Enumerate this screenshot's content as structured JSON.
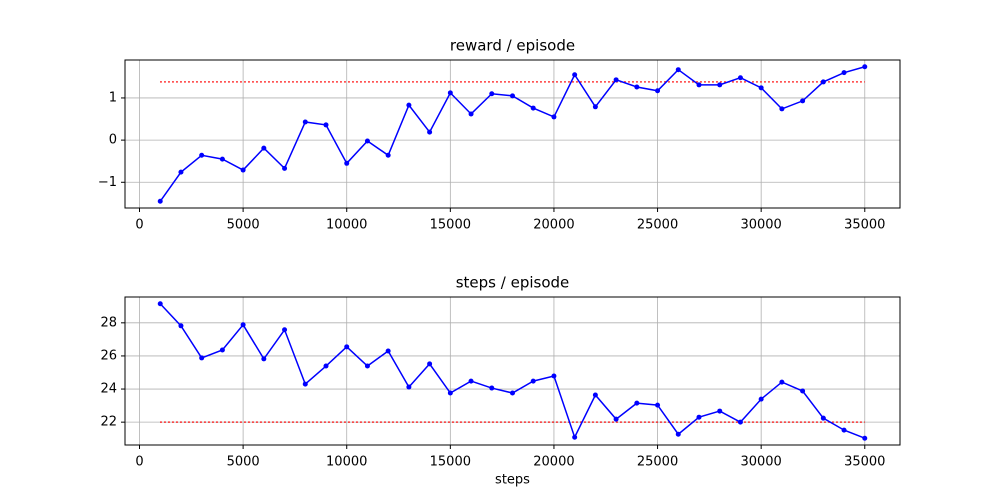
{
  "chart_data": [
    {
      "type": "line",
      "title": "reward / episode",
      "x": [
        1000,
        2000,
        3000,
        4000,
        5000,
        6000,
        7000,
        8000,
        9000,
        10000,
        11000,
        12000,
        13000,
        14000,
        15000,
        16000,
        17000,
        18000,
        19000,
        20000,
        21000,
        22000,
        23000,
        24000,
        25000,
        26000,
        27000,
        28000,
        29000,
        30000,
        31000,
        32000,
        33000,
        34000,
        35000
      ],
      "series": [
        {
          "color": "#0000ff",
          "values": [
            -1.45,
            -0.76,
            -0.36,
            -0.45,
            -0.71,
            -0.19,
            -0.67,
            0.43,
            0.36,
            -0.55,
            -0.02,
            -0.36,
            0.83,
            0.19,
            1.12,
            0.62,
            1.1,
            1.05,
            0.76,
            0.55,
            1.55,
            0.79,
            1.43,
            1.26,
            1.17,
            1.67,
            1.31,
            1.31,
            1.48,
            1.24,
            0.74,
            0.93,
            1.38,
            1.6,
            1.74
          ]
        }
      ],
      "threshold": {
        "value": 1.38,
        "xrange": [
          1000,
          35000
        ],
        "color": "#ff0000",
        "style": "dotted"
      },
      "xlim": [
        -700,
        36700
      ],
      "xticks": [
        0,
        5000,
        10000,
        15000,
        20000,
        25000,
        30000,
        35000
      ],
      "ylim": [
        -1.61,
        1.9
      ],
      "yticks": [
        {
          "value": -1,
          "label": "−1"
        },
        0,
        1
      ],
      "grid": true
    },
    {
      "type": "line",
      "title": "steps / episode",
      "x_label": "steps",
      "x": [
        1000,
        2000,
        3000,
        4000,
        5000,
        6000,
        7000,
        8000,
        9000,
        10000,
        11000,
        12000,
        13000,
        14000,
        15000,
        16000,
        17000,
        18000,
        19000,
        20000,
        21000,
        22000,
        23000,
        24000,
        25000,
        26000,
        27000,
        28000,
        29000,
        30000,
        31000,
        32000,
        33000,
        34000,
        35000
      ],
      "series": [
        {
          "color": "#0000ff",
          "values": [
            29.15,
            27.82,
            25.88,
            26.36,
            27.88,
            25.82,
            27.58,
            24.3,
            25.39,
            26.55,
            25.39,
            26.3,
            24.12,
            25.52,
            23.76,
            24.48,
            24.06,
            23.76,
            24.48,
            24.79,
            21.09,
            23.64,
            22.18,
            23.15,
            23.03,
            21.27,
            22.3,
            22.67,
            22.0,
            23.39,
            24.42,
            23.88,
            22.24,
            21.52,
            21.03
          ]
        }
      ],
      "threshold": {
        "value": 22,
        "xrange": [
          1000,
          35000
        ],
        "color": "#ff0000",
        "style": "dotted"
      },
      "xlim": [
        -700,
        36700
      ],
      "xticks": [
        0,
        5000,
        10000,
        15000,
        20000,
        25000,
        30000,
        35000
      ],
      "ylim": [
        20.62,
        29.56
      ],
      "yticks": [
        22,
        24,
        26,
        28
      ],
      "grid": true
    }
  ]
}
